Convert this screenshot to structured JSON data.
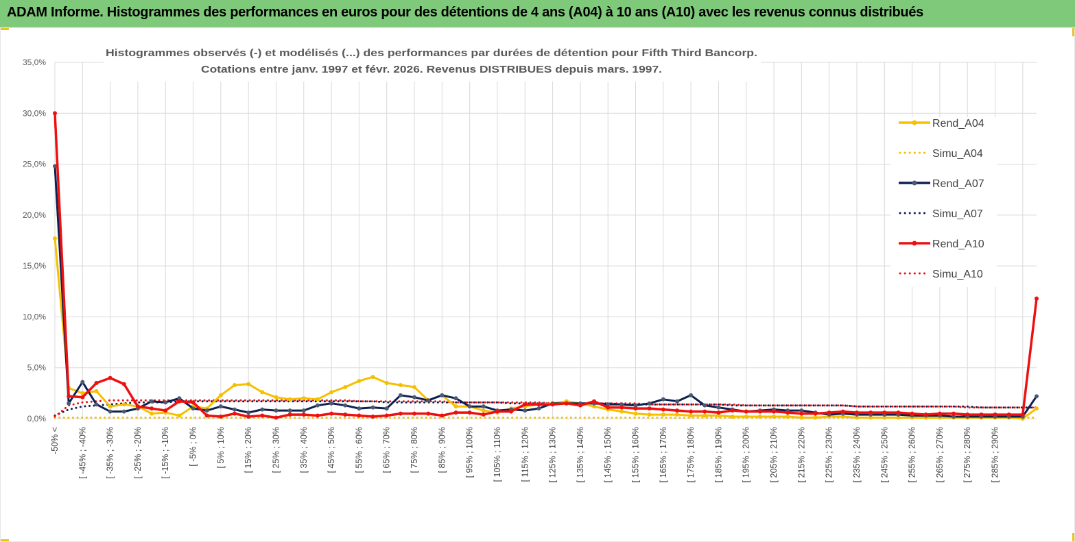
{
  "banner": {
    "title": "ADAM Informe. Histogrammes des performances en euros pour des détentions de 4 ans (A04) à 10 ans (A10) avec les revenus connus distribués"
  },
  "colors": {
    "banner_bg": "#7ec97a",
    "a04": "#f5c000",
    "a07": "#0d2050",
    "a07_marker": "#4a5a70",
    "a10": "#ee1010",
    "grid": "#d9d9d9"
  },
  "chart_data": {
    "type": "line",
    "title_lines": [
      "Histogrammes observés (-) et modélisés (...) des performances par durées de détention pour Fifth Third Bancorp.",
      "Cotations entre janv. 1997 et févr. 2026. Revenus DISTRIBUES depuis mars. 1997."
    ],
    "y_ticks": [
      "0,0%",
      "5,0%",
      "10,0%",
      "15,0%",
      "20,0%",
      "25,0%",
      "30,0%",
      "35,0%"
    ],
    "ylim": [
      0,
      35
    ],
    "grid": true,
    "legend_position": "right",
    "x_labels": [
      "-50% <",
      "[ -45% ; -40%",
      "[ -35% ; -30%",
      "[ -25% ; -20%",
      "[ -15% ; -10%",
      "[ -5% ; 0%",
      "[ 5% ; 10%",
      "[ 15% ; 20%",
      "[ 25% ; 30%",
      "[ 35% ; 40%",
      "[ 45% ; 50%",
      "[ 55% ; 60%",
      "[ 65% ; 70%",
      "[ 75% ; 80%",
      "[ 85% ; 90%",
      "[ 95% ; 100%",
      "[ 105% ; 110%",
      "[ 115% ; 120%",
      "[ 125% ; 130%",
      "[ 135% ; 140%",
      "[ 145% ; 150%",
      "[ 155% ; 160%",
      "[ 165% ; 170%",
      "[ 175% ; 180%",
      "[ 185% ; 190%",
      "[ 195% ; 200%",
      "[ 205% ; 210%",
      "[ 215% ; 220%",
      "[ 225% ; 230%",
      "[ 235% ; 240%",
      "[ 245% ; 250%",
      "[ 255% ; 260%",
      "[ 265% ; 270%",
      "[ 275% ; 280%",
      "[ 285% ; 290%"
    ],
    "series": [
      {
        "name": "Rend_A04",
        "style": "solid",
        "color": "#f5c000",
        "values": [
          17.7,
          3.0,
          2.5,
          2.7,
          1.2,
          1.4,
          1.2,
          0.5,
          0.6,
          0.3,
          1.2,
          1.0,
          2.3,
          3.3,
          3.4,
          2.6,
          2.1,
          1.9,
          2.0,
          1.9,
          2.6,
          3.1,
          3.7,
          4.1,
          3.5,
          3.3,
          3.1,
          1.8,
          2.3,
          1.2,
          1.2,
          0.8,
          0.6,
          1.0,
          1.2,
          1.4,
          1.5,
          1.7,
          1.5,
          1.2,
          0.9,
          0.7,
          0.5,
          0.4,
          0.4,
          0.4,
          0.3,
          0.3,
          0.3,
          0.2,
          0.2,
          0.2,
          0.2,
          0.2,
          0.1,
          0.1,
          0.2,
          0.2,
          0.1,
          0.1,
          0.1,
          0.1,
          0.1,
          0.1,
          0.1,
          0.1,
          0.1,
          0.1,
          0.1,
          0.1,
          0.0,
          1.0
        ]
      },
      {
        "name": "Simu_A04",
        "style": "dotted",
        "color": "#f5c000",
        "values": [
          0.1,
          0.1,
          0.1,
          0.1,
          0.1,
          0.1,
          0.1,
          0.1,
          0.1,
          0.1,
          0.1,
          0.1,
          0.1,
          0.1,
          0.1,
          0.1,
          0.1,
          0.1,
          0.1,
          0.1,
          0.1,
          0.1,
          0.1,
          0.1,
          0.1,
          0.1,
          0.1,
          0.1,
          0.1,
          0.1,
          0.1,
          0.1,
          0.1,
          0.1,
          0.1,
          0.1,
          0.1,
          0.1,
          0.1,
          0.1,
          0.1,
          0.1,
          0.1,
          0.1,
          0.1,
          0.1,
          0.1,
          0.1,
          0.1,
          0.1,
          0.1,
          0.1,
          0.1,
          0.1,
          0.1,
          0.1,
          0.1,
          0.1,
          0.1,
          0.1,
          0.1,
          0.1,
          0.1,
          0.1,
          0.1,
          0.1,
          0.1,
          0.1,
          0.1,
          0.1,
          0.1,
          0.1
        ]
      },
      {
        "name": "Rend_A07",
        "style": "solid",
        "color": "#0d2050",
        "values": [
          24.8,
          1.5,
          3.6,
          1.4,
          0.7,
          0.7,
          1.0,
          1.7,
          1.6,
          2.0,
          1.0,
          0.8,
          1.2,
          0.9,
          0.6,
          0.9,
          0.8,
          0.8,
          0.8,
          1.3,
          1.5,
          1.3,
          1.0,
          1.1,
          1.0,
          2.3,
          2.1,
          1.8,
          2.3,
          2.0,
          1.2,
          1.2,
          0.8,
          0.9,
          0.8,
          1.0,
          1.5,
          1.5,
          1.5,
          1.5,
          1.4,
          1.4,
          1.3,
          1.5,
          1.9,
          1.7,
          2.3,
          1.3,
          1.1,
          0.9,
          0.7,
          0.8,
          0.9,
          0.8,
          0.8,
          0.6,
          0.4,
          0.5,
          0.4,
          0.4,
          0.4,
          0.4,
          0.3,
          0.3,
          0.3,
          0.2,
          0.2,
          0.2,
          0.2,
          0.2,
          0.2,
          2.2
        ]
      },
      {
        "name": "Simu_A07",
        "style": "dotted",
        "color": "#0d2050",
        "values": [
          0.3,
          0.9,
          1.2,
          1.3,
          1.4,
          1.5,
          1.6,
          1.6,
          1.6,
          1.7,
          1.7,
          1.7,
          1.7,
          1.7,
          1.7,
          1.7,
          1.7,
          1.7,
          1.7,
          1.7,
          1.7,
          1.7,
          1.7,
          1.7,
          1.6,
          1.6,
          1.6,
          1.6,
          1.6,
          1.6,
          1.6,
          1.6,
          1.6,
          1.5,
          1.5,
          1.5,
          1.5,
          1.5,
          1.5,
          1.5,
          1.5,
          1.4,
          1.4,
          1.4,
          1.4,
          1.4,
          1.4,
          1.4,
          1.4,
          1.3,
          1.3,
          1.3,
          1.3,
          1.3,
          1.3,
          1.3,
          1.3,
          1.3,
          1.2,
          1.2,
          1.2,
          1.2,
          1.2,
          1.2,
          1.2,
          1.2,
          1.2,
          1.1,
          1.1,
          1.1,
          1.1,
          1.1
        ]
      },
      {
        "name": "Rend_A10",
        "style": "solid",
        "color": "#ee1010",
        "values": [
          30.0,
          2.2,
          2.1,
          3.5,
          4.0,
          3.4,
          1.2,
          1.0,
          0.8,
          1.7,
          1.6,
          0.3,
          0.2,
          0.5,
          0.2,
          0.3,
          0.1,
          0.4,
          0.4,
          0.3,
          0.5,
          0.4,
          0.3,
          0.2,
          0.3,
          0.5,
          0.5,
          0.5,
          0.3,
          0.6,
          0.6,
          0.4,
          0.7,
          0.7,
          1.4,
          1.4,
          1.4,
          1.5,
          1.3,
          1.7,
          1.1,
          1.1,
          1.0,
          1.0,
          0.9,
          0.8,
          0.7,
          0.7,
          0.6,
          0.8,
          0.7,
          0.7,
          0.7,
          0.6,
          0.5,
          0.5,
          0.6,
          0.7,
          0.6,
          0.6,
          0.6,
          0.6,
          0.5,
          0.4,
          0.5,
          0.5,
          0.4,
          0.4,
          0.4,
          0.4,
          0.4,
          11.8
        ]
      },
      {
        "name": "Simu_A10",
        "style": "dotted",
        "color": "#ee1010",
        "values": [
          0.2,
          1.3,
          1.6,
          1.7,
          1.8,
          1.8,
          1.8,
          1.8,
          1.8,
          1.8,
          1.8,
          1.8,
          1.8,
          1.8,
          1.8,
          1.8,
          1.8,
          1.8,
          1.8,
          1.8,
          1.8,
          1.8,
          1.7,
          1.7,
          1.7,
          1.7,
          1.7,
          1.7,
          1.7,
          1.6,
          1.6,
          1.6,
          1.6,
          1.6,
          1.6,
          1.6,
          1.5,
          1.5,
          1.5,
          1.5,
          1.5,
          1.5,
          1.5,
          1.4,
          1.4,
          1.4,
          1.4,
          1.4,
          1.4,
          1.4,
          1.3,
          1.3,
          1.3,
          1.3,
          1.3,
          1.3,
          1.3,
          1.3,
          1.2,
          1.2,
          1.2,
          1.2,
          1.2,
          1.2,
          1.2,
          1.2,
          1.1,
          1.1,
          1.1,
          1.1,
          1.1,
          1.1
        ]
      }
    ]
  }
}
